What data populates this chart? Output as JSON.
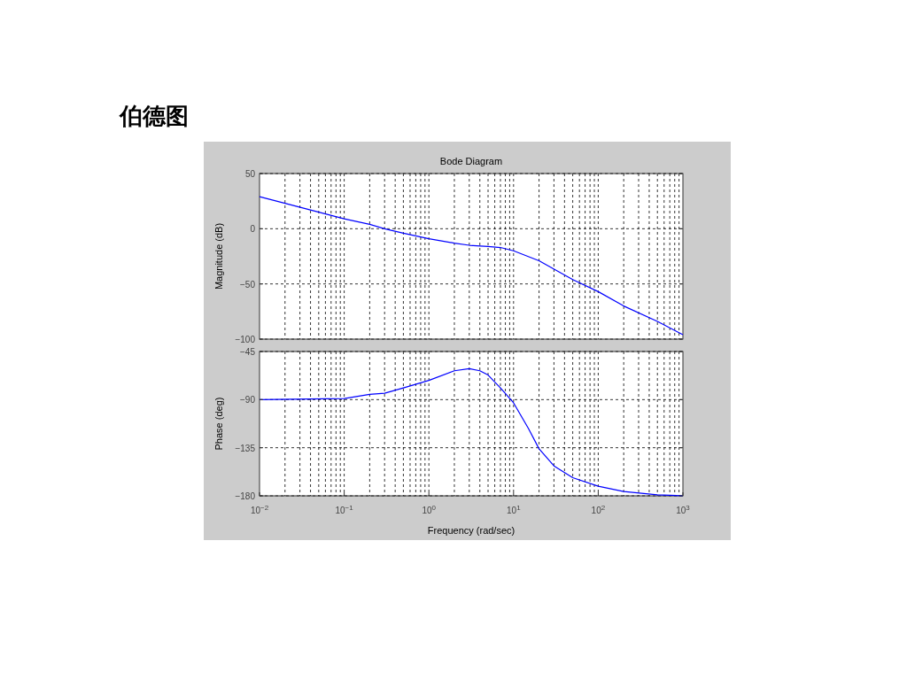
{
  "chart_data": [
    {
      "type": "line",
      "title": "伯德图",
      "subtitle": "Bode Diagram",
      "ylabel": "Magnitude (dB)",
      "log": "x",
      "grid": true,
      "tick_labels": "y",
      "xlim": [
        0.01,
        1000
      ],
      "ylim": [
        -100,
        50
      ],
      "yticks": [
        -100,
        -50,
        0,
        50
      ],
      "x": [
        0.01,
        0.02,
        0.1,
        0.2,
        0.3,
        0.5,
        1,
        2,
        3,
        5,
        7,
        10,
        20,
        50,
        100,
        200,
        500,
        1000
      ],
      "series": [
        {
          "color": "#0000ff",
          "values": [
            29,
            23,
            9,
            4,
            0,
            -4,
            -9,
            -13,
            -15,
            -16,
            -17,
            -20,
            -29,
            -46,
            -57,
            -70,
            -84,
            -96
          ]
        }
      ]
    },
    {
      "type": "line",
      "ylabel": "Phase (deg)",
      "xlabel": "Frequency  (rad/sec)",
      "log": "x",
      "grid": true,
      "xlim": [
        0.01,
        1000
      ],
      "ylim": [
        -180,
        -45
      ],
      "yticks": [
        -180,
        -135,
        -90,
        -45
      ],
      "xticks": [
        {
          "value": 0.01,
          "label": "10$^{−2}$"
        },
        {
          "value": 0.1,
          "label": "10$^{−1}$"
        },
        {
          "value": 1,
          "label": "10$^{0}$"
        },
        {
          "value": 10,
          "label": "10$^{1}$"
        },
        {
          "value": 100,
          "label": "10$^{2}$"
        },
        {
          "value": 1000,
          "label": "10$^{3}$"
        }
      ],
      "x": [
        0.01,
        0.1,
        0.2,
        0.3,
        0.5,
        1,
        2,
        3,
        4,
        5,
        7,
        10,
        15,
        20,
        30,
        50,
        100,
        200,
        500,
        1000
      ],
      "series": [
        {
          "color": "#0000ff",
          "values": [
            -90,
            -89,
            -85,
            -84,
            -79,
            -72,
            -63,
            -61,
            -63,
            -67,
            -79,
            -93,
            -117,
            -136,
            -152,
            -163,
            -171,
            -176,
            -179,
            -180
          ]
        }
      ]
    }
  ]
}
